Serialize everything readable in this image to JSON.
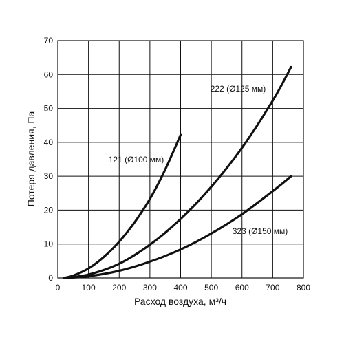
{
  "chart_data": {
    "type": "line",
    "xlabel": "Расход воздуха, м³/ч",
    "ylabel": "Потеря давления, Па",
    "xlim": [
      0,
      800
    ],
    "ylim": [
      0,
      70
    ],
    "x_ticks": [
      0,
      100,
      200,
      300,
      400,
      500,
      600,
      700,
      800
    ],
    "y_ticks": [
      0,
      10,
      20,
      30,
      40,
      50,
      60,
      70
    ],
    "grid": true,
    "series": [
      {
        "name": "121 (Ø100 мм)",
        "x": [
          20,
          50,
          100,
          150,
          200,
          250,
          300,
          350,
          400
        ],
        "y": [
          0,
          0.7,
          2.8,
          6.2,
          10.7,
          16.4,
          23.3,
          32.0,
          42.2
        ]
      },
      {
        "name": "222 (Ø125 мм)",
        "x": [
          20,
          100,
          200,
          300,
          400,
          500,
          600,
          700,
          760
        ],
        "y": [
          0,
          1.0,
          4.2,
          9.8,
          17.4,
          26.9,
          38.4,
          52.3,
          62.2
        ]
      },
      {
        "name": "323 (Ø150 мм)",
        "x": [
          20,
          100,
          200,
          300,
          400,
          500,
          600,
          700,
          760
        ],
        "y": [
          0,
          0.5,
          2.1,
          4.8,
          8.4,
          13.1,
          18.8,
          25.6,
          30.0
        ]
      }
    ]
  }
}
